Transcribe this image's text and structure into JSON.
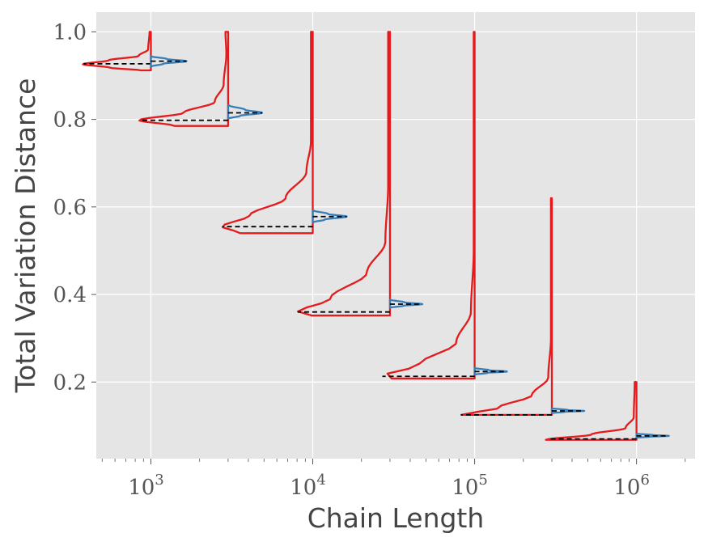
{
  "chart_data": {
    "type": "violin",
    "xlabel": "Chain Length",
    "ylabel": "Total Variation Distance",
    "x_scale": "log",
    "xlim": [
      460,
      2300000
    ],
    "ylim": [
      0.025,
      1.045
    ],
    "grid": true,
    "x_ticks": [
      {
        "value": 1000,
        "base": "10",
        "exp": "3"
      },
      {
        "value": 10000,
        "base": "10",
        "exp": "4"
      },
      {
        "value": 100000,
        "base": "10",
        "exp": "5"
      },
      {
        "value": 1000000,
        "base": "10",
        "exp": "6"
      }
    ],
    "y_ticks": [
      {
        "value": 0.2,
        "label": "0.2"
      },
      {
        "value": 0.4,
        "label": "0.4"
      },
      {
        "value": 0.6,
        "label": "0.6"
      },
      {
        "value": 0.8,
        "label": "0.8"
      },
      {
        "value": 1.0,
        "label": "1.0"
      }
    ],
    "colors": {
      "left_series": "#e41a1c",
      "right_series": "#377eb8",
      "median": "#000000"
    },
    "groups": [
      {
        "x": 1000,
        "left": {
          "min": 0.912,
          "max": 1.0,
          "median": 0.927,
          "width": 0.42,
          "profile": [
            [
              0.912,
              0.15
            ],
            [
              0.918,
              0.6
            ],
            [
              0.926,
              1.0
            ],
            [
              0.935,
              0.62
            ],
            [
              0.945,
              0.18
            ],
            [
              0.96,
              0.04
            ],
            [
              1.0,
              0.02
            ]
          ]
        },
        "right": {
          "min": 0.921,
          "max": 0.944,
          "median": 0.933,
          "width": 0.22,
          "profile": [
            [
              0.921,
              0.02
            ],
            [
              0.927,
              0.35
            ],
            [
              0.933,
              1.0
            ],
            [
              0.938,
              0.45
            ],
            [
              0.944,
              0.02
            ]
          ]
        }
      },
      {
        "x": 3000,
        "left": {
          "min": 0.785,
          "max": 1.0,
          "median": 0.798,
          "width": 0.55,
          "profile": [
            [
              0.785,
              0.6
            ],
            [
              0.798,
              1.0
            ],
            [
              0.815,
              0.5
            ],
            [
              0.84,
              0.15
            ],
            [
              0.88,
              0.05
            ],
            [
              0.95,
              0.02
            ],
            [
              1.0,
              0.03
            ]
          ]
        },
        "right": {
          "min": 0.802,
          "max": 0.832,
          "median": 0.815,
          "width": 0.21,
          "profile": [
            [
              0.802,
              0.02
            ],
            [
              0.808,
              0.35
            ],
            [
              0.815,
              1.0
            ],
            [
              0.822,
              0.5
            ],
            [
              0.832,
              0.03
            ]
          ]
        }
      },
      {
        "x": 10000,
        "left": {
          "min": 0.54,
          "max": 1.0,
          "median": 0.555,
          "width": 0.56,
          "profile": [
            [
              0.54,
              0.8
            ],
            [
              0.555,
              1.0
            ],
            [
              0.58,
              0.7
            ],
            [
              0.62,
              0.3
            ],
            [
              0.68,
              0.07
            ],
            [
              0.75,
              0.02
            ],
            [
              1.0,
              0.02
            ]
          ]
        },
        "right": {
          "min": 0.565,
          "max": 0.592,
          "median": 0.578,
          "width": 0.21,
          "profile": [
            [
              0.565,
              0.02
            ],
            [
              0.571,
              0.35
            ],
            [
              0.578,
              1.0
            ],
            [
              0.584,
              0.45
            ],
            [
              0.592,
              0.02
            ]
          ]
        }
      },
      {
        "x": 30000,
        "left": {
          "min": 0.352,
          "max": 1.0,
          "median": 0.36,
          "width": 0.57,
          "profile": [
            [
              0.352,
              0.85
            ],
            [
              0.36,
              1.0
            ],
            [
              0.39,
              0.65
            ],
            [
              0.45,
              0.25
            ],
            [
              0.52,
              0.05
            ],
            [
              0.65,
              0.02
            ],
            [
              1.0,
              0.02
            ]
          ]
        },
        "right": {
          "min": 0.37,
          "max": 0.388,
          "median": 0.378,
          "width": 0.2,
          "profile": [
            [
              0.37,
              0.02
            ],
            [
              0.374,
              0.4
            ],
            [
              0.378,
              1.0
            ],
            [
              0.382,
              0.45
            ],
            [
              0.388,
              0.02
            ]
          ]
        }
      },
      {
        "x": 100000,
        "left": {
          "min": 0.208,
          "max": 1.0,
          "median": 0.213,
          "width": 0.57,
          "profile": [
            [
              0.208,
              0.9
            ],
            [
              0.213,
              1.0
            ],
            [
              0.24,
              0.6
            ],
            [
              0.29,
              0.2
            ],
            [
              0.36,
              0.04
            ],
            [
              0.5,
              0.01
            ],
            [
              1.0,
              0.01
            ]
          ]
        },
        "right": {
          "min": 0.217,
          "max": 0.232,
          "median": 0.224,
          "width": 0.2,
          "profile": [
            [
              0.217,
              0.02
            ],
            [
              0.221,
              0.4
            ],
            [
              0.224,
              1.0
            ],
            [
              0.227,
              0.45
            ],
            [
              0.232,
              0.02
            ]
          ]
        }
      },
      {
        "x": 300000,
        "left": {
          "min": 0.125,
          "max": 0.62,
          "median": 0.125,
          "width": 0.56,
          "profile": [
            [
              0.125,
              1.0
            ],
            [
              0.14,
              0.6
            ],
            [
              0.17,
              0.22
            ],
            [
              0.21,
              0.04
            ],
            [
              0.3,
              0.01
            ],
            [
              0.62,
              0.01
            ]
          ]
        },
        "right": {
          "min": 0.129,
          "max": 0.14,
          "median": 0.134,
          "width": 0.2,
          "profile": [
            [
              0.129,
              0.02
            ],
            [
              0.132,
              0.4
            ],
            [
              0.134,
              1.0
            ],
            [
              0.136,
              0.5
            ],
            [
              0.14,
              0.02
            ]
          ]
        }
      },
      {
        "x": 1000000,
        "left": {
          "min": 0.068,
          "max": 0.2,
          "median": 0.07,
          "width": 0.56,
          "profile": [
            [
              0.068,
              1.0
            ],
            [
              0.08,
              0.5
            ],
            [
              0.095,
              0.12
            ],
            [
              0.12,
              0.03
            ],
            [
              0.2,
              0.02
            ]
          ]
        },
        "right": {
          "min": 0.073,
          "max": 0.082,
          "median": 0.077,
          "width": 0.2,
          "profile": [
            [
              0.073,
              0.02
            ],
            [
              0.075,
              0.4
            ],
            [
              0.077,
              1.0
            ],
            [
              0.079,
              0.5
            ],
            [
              0.082,
              0.02
            ]
          ]
        }
      }
    ]
  }
}
